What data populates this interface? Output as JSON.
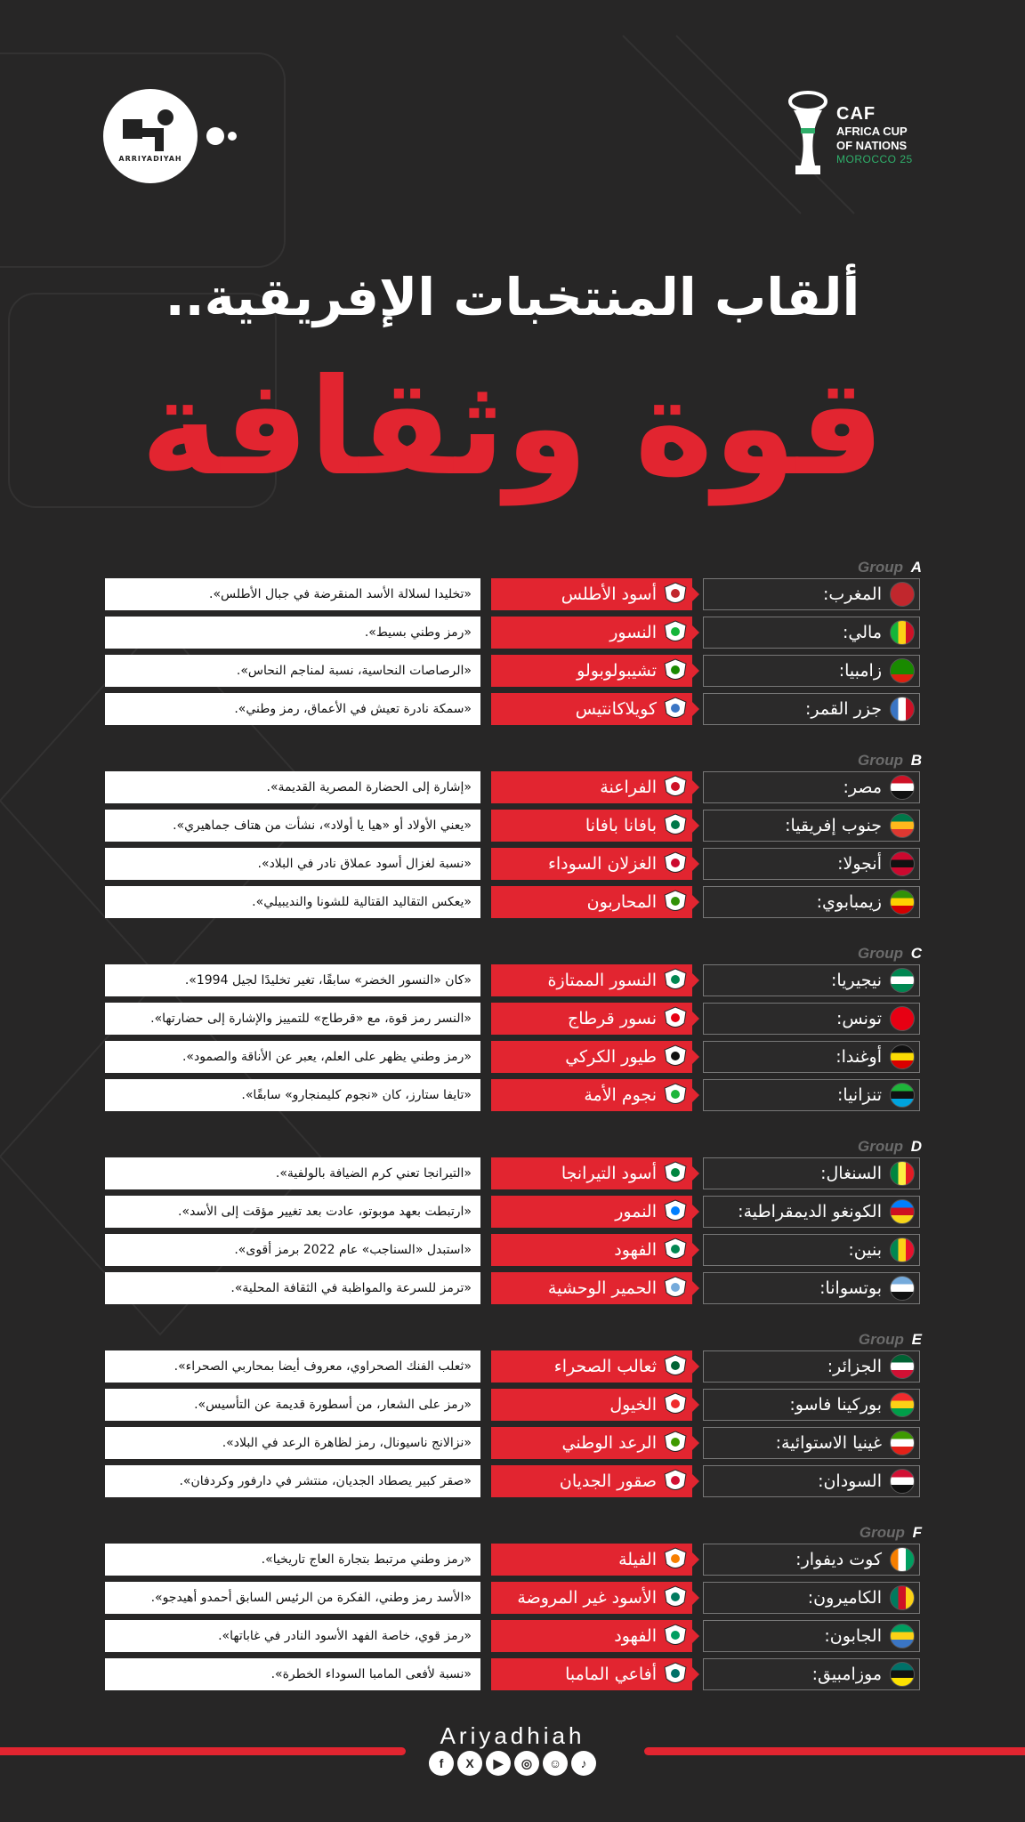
{
  "header": {
    "brand_text": "ARRIYADIYAH",
    "caf": {
      "word": "CAF",
      "line2": "AFRICA CUP",
      "line3": "OF NATIONS",
      "line4": "MOROCCO 25"
    }
  },
  "title": {
    "line1": "ألقاب المنتخبات الإفريقية..",
    "line2": "قوة وثقافة"
  },
  "colors": {
    "accent": "#e22530",
    "background": "#272626",
    "group_label": "#6b6b6b"
  },
  "groups": [
    {
      "label": "Group",
      "letter": "A",
      "rows": [
        {
          "country": "المغرب:",
          "nickname": "أسود الأطلس",
          "description": "«تخليدا لسلالة الأسد المنقرضة في جبال الأطلس»."
        },
        {
          "country": "مالي:",
          "nickname": "النسور",
          "description": "«رمز وطني بسيط»."
        },
        {
          "country": "زامبيا:",
          "nickname": "تشيبولوبولو",
          "description": "«الرصاصات النحاسية، نسبة لمناجم النحاس»."
        },
        {
          "country": "جزر القمر:",
          "nickname": "كويلاكانتيس",
          "description": "«سمكة نادرة تعيش في الأعماق، رمز وطني»."
        }
      ]
    },
    {
      "label": "Group",
      "letter": "B",
      "rows": [
        {
          "country": "مصر:",
          "nickname": "الفراعنة",
          "description": "«إشارة إلى الحضارة المصرية القديمة»."
        },
        {
          "country": "جنوب إفريقيا:",
          "nickname": "بافانا بافانا",
          "description": "«يعني الأولاد أو «هيا يا أولاد»، نشأت من هتاف جماهيري»."
        },
        {
          "country": "أنجولا:",
          "nickname": "الغزلان السوداء",
          "description": "«نسبة لغزال أسود عملاق نادر في البلاد»."
        },
        {
          "country": "زيمبابوي:",
          "nickname": "المحاربون",
          "description": "«يعكس التقاليد القتالية للشونا والنديبيلي»."
        }
      ]
    },
    {
      "label": "Group",
      "letter": "C",
      "rows": [
        {
          "country": "نيجيريا:",
          "nickname": "النسور الممتازة",
          "description": "«كان «النسور الخضر» سابقًا، تغير تخليدًا لجيل 1994»."
        },
        {
          "country": "تونس:",
          "nickname": "نسور قرطاج",
          "description": "«النسر رمز قوة، مع «قرطاج» للتمييز والإشارة إلى حضارتها»."
        },
        {
          "country": "أوغندا:",
          "nickname": "طيور الكركي",
          "description": "«رمز وطني يظهر على العلم، يعبر عن الأناقة والصمود»."
        },
        {
          "country": "تنزانيا:",
          "nickname": "نجوم الأمة",
          "description": "«تايفا ستارز، كان «نجوم كليمنجارو» سابقًا»."
        }
      ]
    },
    {
      "label": "Group",
      "letter": "D",
      "rows": [
        {
          "country": "السنغال:",
          "nickname": "أسود التيرانجا",
          "description": "«التيرانجا تعني كرم الضيافة بالولفية»."
        },
        {
          "country": "الكونغو الديمقراطية:",
          "nickname": "النمور",
          "description": "«ارتبطت بعهد موبوتو، عادت بعد تغيير مؤقت إلى الأسد»."
        },
        {
          "country": "بنين:",
          "nickname": "الفهود",
          "description": "«استبدل «السناجب» عام 2022 برمز أقوى»."
        },
        {
          "country": "بوتسوانا:",
          "nickname": "الحمير الوحشية",
          "description": "«ترمز للسرعة والمواظبة في الثقافة المحلية»."
        }
      ]
    },
    {
      "label": "Group",
      "letter": "E",
      "rows": [
        {
          "country": "الجزائر:",
          "nickname": "ثعالب الصحراء",
          "description": "«ثعلب الفنك الصحراوي، معروف أيضا بمحاربي الصحراء»."
        },
        {
          "country": "بوركينا فاسو:",
          "nickname": "الخيول",
          "description": "«رمز على الشعار، من أسطورة قديمة عن التأسيس»."
        },
        {
          "country": "غينيا الاستوائية:",
          "nickname": "الرعد الوطني",
          "description": "«نزالانج ناسيونال، رمز لظاهرة الرعد في البلاد»."
        },
        {
          "country": "السودان:",
          "nickname": "صقور الجديان",
          "description": "«صقر كبير يصطاد الجديان، منتشر في دارفور وكردفان»."
        }
      ]
    },
    {
      "label": "Group",
      "letter": "F",
      "rows": [
        {
          "country": "كوت ديفوار:",
          "nickname": "الفيلة",
          "description": "«رمز وطني مرتبط بتجارة العاج تاريخيا»."
        },
        {
          "country": "الكاميرون:",
          "nickname": "الأسود غير المروضة",
          "description": "«الأسد رمز وطني، الفكرة من الرئيس السابق أحمدو أهيدجو»."
        },
        {
          "country": "الجابون:",
          "nickname": "الفهود",
          "description": "«رمز قوي، خاصة الفهد الأسود النادر في غاباتها»."
        },
        {
          "country": "موزامبيق:",
          "nickname": "أفاعي المامبا",
          "description": "«نسبة لأفعى المامبا السوداء الخطرة»."
        }
      ]
    }
  ],
  "footer": {
    "name": "Ariyadhiah",
    "social_icons": [
      "facebook-icon",
      "x-icon",
      "youtube-icon",
      "instagram-icon",
      "snapchat-icon",
      "tiktok-icon"
    ]
  }
}
